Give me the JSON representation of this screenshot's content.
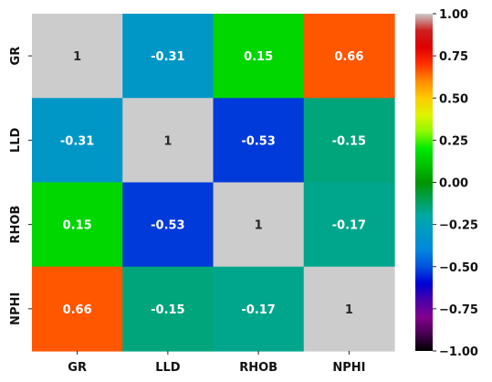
{
  "chart_data": {
    "type": "heatmap",
    "title": "",
    "xlabel": "",
    "ylabel": "",
    "x_labels": [
      "GR",
      "LLD",
      "RHOB",
      "NPHI"
    ],
    "y_labels": [
      "GR",
      "LLD",
      "RHOB",
      "NPHI"
    ],
    "matrix": [
      [
        1,
        -0.31,
        0.15,
        0.66
      ],
      [
        -0.31,
        1,
        -0.53,
        -0.15
      ],
      [
        0.15,
        -0.53,
        1,
        -0.17
      ],
      [
        0.66,
        -0.15,
        -0.17,
        1
      ]
    ],
    "cell_labels": [
      [
        "1",
        "-0.31",
        "0.15",
        "0.66"
      ],
      [
        "-0.31",
        "1",
        "-0.53",
        "-0.15"
      ],
      [
        "0.15",
        "-0.53",
        "1",
        "-0.17"
      ],
      [
        "0.66",
        "-0.15",
        "-0.17",
        "1"
      ]
    ],
    "vmin": -1,
    "vmax": 1,
    "colormap": "nipy_spectral",
    "annotated": true,
    "colorbar": {
      "position": "right",
      "ticks": [
        1.0,
        0.75,
        0.5,
        0.25,
        0.0,
        -0.25,
        -0.5,
        -0.75,
        -1.0
      ],
      "tick_labels": [
        "1.00",
        "0.75",
        "0.50",
        "0.25",
        "0.00",
        "−0.25",
        "−0.50",
        "−0.75",
        "−1.00"
      ]
    }
  }
}
